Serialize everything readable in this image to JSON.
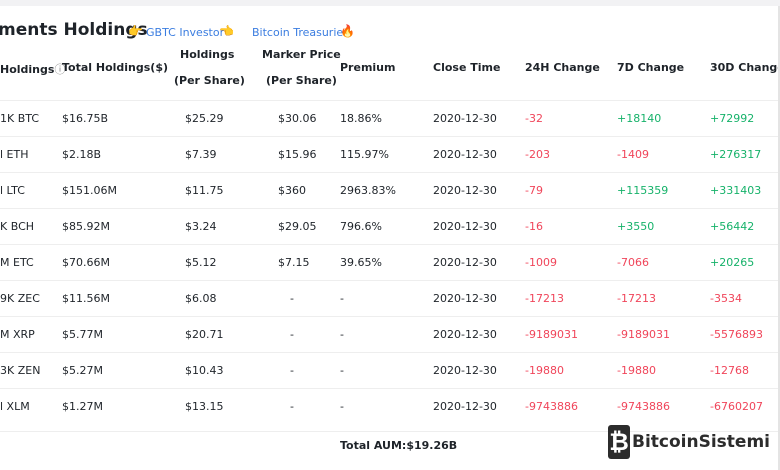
{
  "header": {
    "title": "ments Holdings",
    "link_gbtc": "GBTC Investor",
    "link_treasuries": "Bitcoin Treasuries"
  },
  "columns": {
    "holdings": "Holdings",
    "info_icon": "ⓘ",
    "total_holdings": "Total Holdings($)",
    "holdings_per_share_1": "Holdings",
    "holdings_per_share_2": "(Per Share)",
    "marker_price_1": "Marker Price",
    "marker_price_2": "(Per Share)",
    "premium": "Premium",
    "close_time": "Close Time",
    "change_24h": "24H Change",
    "change_7d": "7D Change",
    "change_30d": "30D Change"
  },
  "rows": [
    {
      "holdings": "1K BTC",
      "total": "$16.75B",
      "per_share": "$25.29",
      "price": "$30.06",
      "premium": "18.86%",
      "close_time": "2020-12-30",
      "c24": "-32",
      "c7": "+18140",
      "c30": "+72992"
    },
    {
      "holdings": "l ETH",
      "total": "$2.18B",
      "per_share": "$7.39",
      "price": "$15.96",
      "premium": "115.97%",
      "close_time": "2020-12-30",
      "c24": "-203",
      "c7": "-1409",
      "c30": "+276317"
    },
    {
      "holdings": "l LTC",
      "total": "$151.06M",
      "per_share": "$11.75",
      "price": "$360",
      "premium": "2963.83%",
      "close_time": "2020-12-30",
      "c24": "-79",
      "c7": "+115359",
      "c30": "+331403"
    },
    {
      "holdings": "K BCH",
      "total": "$85.92M",
      "per_share": "$3.24",
      "price": "$29.05",
      "premium": "796.6%",
      "close_time": "2020-12-30",
      "c24": "-16",
      "c7": "+3550",
      "c30": "+56442"
    },
    {
      "holdings": "M ETC",
      "total": "$70.66M",
      "per_share": "$5.12",
      "price": "$7.15",
      "premium": "39.65%",
      "close_time": "2020-12-30",
      "c24": "-1009",
      "c7": "-7066",
      "c30": "+20265"
    },
    {
      "holdings": "9K ZEC",
      "total": "$11.56M",
      "per_share": "$6.08",
      "price": "-",
      "premium": "-",
      "close_time": "2020-12-30",
      "c24": "-17213",
      "c7": "-17213",
      "c30": "-3534"
    },
    {
      "holdings": "M XRP",
      "total": "$5.77M",
      "per_share": "$20.71",
      "price": "-",
      "premium": "-",
      "close_time": "2020-12-30",
      "c24": "-9189031",
      "c7": "-9189031",
      "c30": "-5576893"
    },
    {
      "holdings": "3K ZEN",
      "total": "$5.27M",
      "per_share": "$10.43",
      "price": "-",
      "premium": "-",
      "close_time": "2020-12-30",
      "c24": "-19880",
      "c7": "-19880",
      "c30": "-12768"
    },
    {
      "holdings": "l XLM",
      "total": "$1.27M",
      "per_share": "$13.15",
      "price": "-",
      "premium": "-",
      "close_time": "2020-12-30",
      "c24": "-9743886",
      "c7": "-9743886",
      "c30": "-6760207"
    }
  ],
  "footer": {
    "total_aum": "Total AUM:$19.26B"
  },
  "watermark": {
    "logo_glyph": "₿",
    "text": "BitcoinSistemi"
  },
  "colors": {
    "negative": "#f0455a",
    "positive": "#16b26a",
    "link": "#3b7de0"
  }
}
